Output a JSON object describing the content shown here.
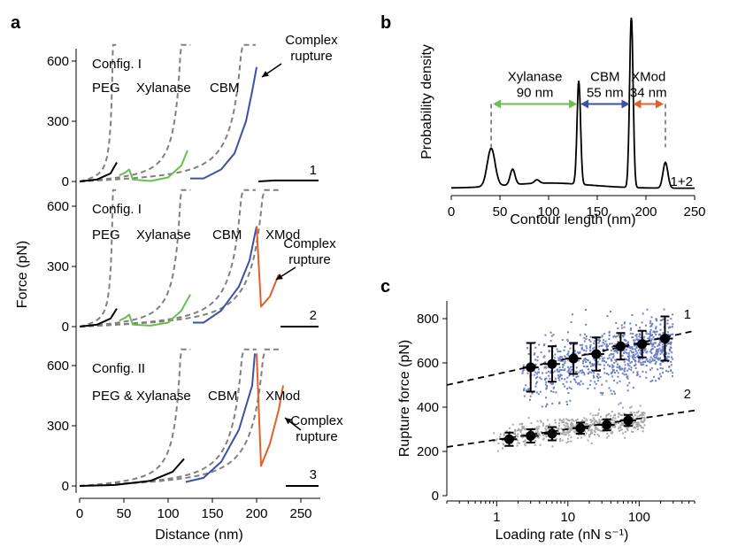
{
  "panels": {
    "a": "a",
    "b": "b",
    "c": "c"
  },
  "colors": {
    "peg": "#000000",
    "xylanase": "#6abf4b",
    "cbm": "#3f4fa8",
    "xmod": "#e0602a",
    "fit": "#808080",
    "cluster1": "#6f7fc6",
    "cluster2": "#a8a8a8"
  },
  "chart_data": [
    {
      "id": "a",
      "type": "line",
      "xlabel": "Distance (nm)",
      "ylabel": "Force (pN)",
      "xlim": [
        0,
        270
      ],
      "xticks": [
        0,
        50,
        100,
        150,
        200,
        250
      ],
      "yticks": [
        0,
        300,
        600
      ],
      "traces": [
        {
          "label": "1",
          "config": "Config. I",
          "segment_labels": [
            "PEG",
            "Xylanase",
            "CBM"
          ],
          "rupture_label": [
            "Complex",
            "rupture"
          ],
          "segments": [
            {
              "name": "PEG",
              "color": "peg",
              "points": [
                [
                  0,
                  0
                ],
                [
                  20,
                  10
                ],
                [
                  35,
                  40
                ],
                [
                  42,
                  95
                ]
              ]
            },
            {
              "name": "Xylanase",
              "color": "xylanase",
              "points": [
                [
                  45,
                  30
                ],
                [
                  52,
                  45
                ],
                [
                  56,
                  60
                ],
                [
                  60,
                  10
                ],
                [
                  80,
                  2
                ],
                [
                  100,
                  20
                ],
                [
                  115,
                  80
                ],
                [
                  122,
                  155
                ]
              ]
            },
            {
              "name": "CBM",
              "color": "cbm",
              "points": [
                [
                  125,
                  15
                ],
                [
                  140,
                  15
                ],
                [
                  160,
                  60
                ],
                [
                  175,
                  140
                ],
                [
                  188,
                  300
                ],
                [
                  195,
                  450
                ],
                [
                  200,
                  570
                ]
              ]
            },
            {
              "name": "rupture",
              "color": "peg",
              "points": [
                [
                  202,
                  0
                ],
                [
                  220,
                  5
                ],
                [
                  270,
                  5
                ]
              ]
            }
          ]
        },
        {
          "label": "2",
          "config": "Config. I",
          "segment_labels": [
            "PEG",
            "Xylanase",
            "CBM",
            "XMod"
          ],
          "rupture_label": [
            "Complex",
            "rupture"
          ],
          "segments": [
            {
              "name": "PEG",
              "color": "peg",
              "points": [
                [
                  0,
                  0
                ],
                [
                  20,
                  10
                ],
                [
                  35,
                  40
                ],
                [
                  42,
                  90
                ]
              ]
            },
            {
              "name": "Xylanase",
              "color": "xylanase",
              "points": [
                [
                  45,
                  30
                ],
                [
                  52,
                  45
                ],
                [
                  56,
                  60
                ],
                [
                  60,
                  10
                ],
                [
                  80,
                  5
                ],
                [
                  100,
                  20
                ],
                [
                  115,
                  80
                ],
                [
                  125,
                  160
                ]
              ]
            },
            {
              "name": "CBM",
              "color": "cbm",
              "points": [
                [
                  128,
                  20
                ],
                [
                  140,
                  20
                ],
                [
                  160,
                  80
                ],
                [
                  180,
                  200
                ],
                [
                  192,
                  330
                ],
                [
                  200,
                  500
                ]
              ]
            },
            {
              "name": "XMod",
              "color": "xmod",
              "points": [
                [
                  200,
                  500
                ],
                [
                  205,
                  100
                ],
                [
                  215,
                  150
                ],
                [
                  225,
                  260
                ]
              ]
            },
            {
              "name": "rupture",
              "color": "peg",
              "points": [
                [
                  227,
                  0
                ],
                [
                  270,
                  0
                ]
              ]
            }
          ]
        },
        {
          "label": "3",
          "config": "Config. II",
          "segment_labels": [
            "PEG & Xylanase",
            "CBM",
            "XMod"
          ],
          "rupture_label": [
            "Complex",
            "rupture"
          ],
          "segments": [
            {
              "name": "PEG & Xylanase",
              "color": "peg",
              "points": [
                [
                  0,
                  0
                ],
                [
                  40,
                  5
                ],
                [
                  80,
                  25
                ],
                [
                  105,
                  70
                ],
                [
                  118,
                  135
                ]
              ]
            },
            {
              "name": "CBM",
              "color": "cbm",
              "points": [
                [
                  120,
                  20
                ],
                [
                  140,
                  40
                ],
                [
                  160,
                  120
                ],
                [
                  180,
                  280
                ],
                [
                  195,
                  500
                ],
                [
                  198,
                  660
                ]
              ]
            },
            {
              "name": "XMod",
              "color": "xmod",
              "points": [
                [
                  200,
                  660
                ],
                [
                  205,
                  100
                ],
                [
                  215,
                  210
                ],
                [
                  225,
                  380
                ],
                [
                  230,
                  500
                ]
              ]
            },
            {
              "name": "rupture",
              "color": "peg",
              "points": [
                [
                  233,
                  0
                ],
                [
                  270,
                  0
                ]
              ]
            }
          ]
        }
      ]
    },
    {
      "id": "b",
      "type": "line",
      "xlabel": "Contour length (nm)",
      "ylabel": "Probability density",
      "xlim": [
        0,
        250
      ],
      "xticks": [
        0,
        50,
        100,
        150,
        200,
        250
      ],
      "trace_label": "1+2",
      "peaks": [
        {
          "x": 41,
          "h": 0.22
        },
        {
          "x": 63,
          "h": 0.09
        },
        {
          "x": 88,
          "h": 0.02
        },
        {
          "x": 131,
          "h": 0.6
        },
        {
          "x": 185,
          "h": 1.0
        },
        {
          "x": 220,
          "h": 0.15
        }
      ],
      "intervals": [
        {
          "name": "Xylanase",
          "length": "90 nm",
          "from": 41,
          "to": 131,
          "color": "xylanase"
        },
        {
          "name": "CBM",
          "length": "55 nm",
          "from": 131,
          "to": 185,
          "color": "cbm"
        },
        {
          "name": "XMod",
          "length": "34 nm",
          "from": 185,
          "to": 220,
          "color": "xmod"
        }
      ]
    },
    {
      "id": "c",
      "type": "scatter",
      "xlabel": "Loading rate (nN s⁻¹)",
      "ylabel": "Rupture force (pN)",
      "xscale": "log",
      "xlim": [
        0.2,
        600
      ],
      "ylim": [
        0,
        880
      ],
      "xticks": [
        1,
        10,
        100
      ],
      "yticks": [
        0,
        200,
        400,
        600,
        800
      ],
      "series": [
        {
          "name": "1",
          "color": "cluster1",
          "fit": [
            [
              0.2,
              500
            ],
            [
              600,
              745
            ]
          ],
          "means": [
            {
              "x": 3,
              "y": 580,
              "err": 110
            },
            {
              "x": 6,
              "y": 595,
              "err": 80
            },
            {
              "x": 12,
              "y": 620,
              "err": 70
            },
            {
              "x": 25,
              "y": 640,
              "err": 75
            },
            {
              "x": 55,
              "y": 675,
              "err": 60
            },
            {
              "x": 110,
              "y": 685,
              "err": 60
            },
            {
              "x": 230,
              "y": 710,
              "err": 100
            }
          ]
        },
        {
          "name": "2",
          "color": "cluster2",
          "fit": [
            [
              0.2,
              220
            ],
            [
              600,
              385
            ]
          ],
          "means": [
            {
              "x": 1.5,
              "y": 255,
              "err": 30
            },
            {
              "x": 3,
              "y": 270,
              "err": 30
            },
            {
              "x": 6,
              "y": 280,
              "err": 30
            },
            {
              "x": 15,
              "y": 305,
              "err": 25
            },
            {
              "x": 35,
              "y": 320,
              "err": 25
            },
            {
              "x": 70,
              "y": 340,
              "err": 25
            }
          ]
        }
      ]
    }
  ]
}
